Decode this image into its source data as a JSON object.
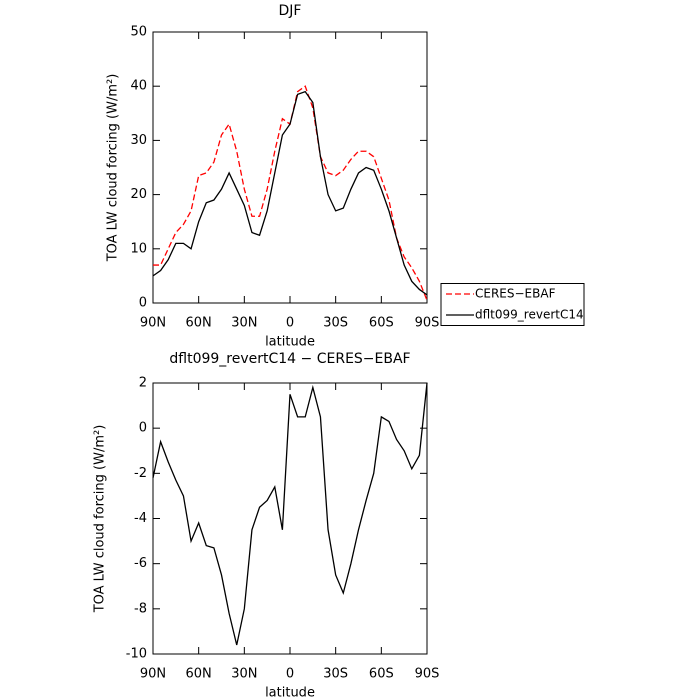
{
  "chart_data": [
    {
      "type": "line",
      "title": "DJF",
      "xlabel": "latitude",
      "ylabel": "TOA LW cloud forcing (W/m²)",
      "x": [
        90,
        85,
        80,
        75,
        70,
        65,
        60,
        55,
        50,
        45,
        40,
        35,
        30,
        25,
        20,
        15,
        10,
        5,
        0,
        -5,
        -10,
        -15,
        -20,
        -25,
        -30,
        -35,
        -40,
        -45,
        -50,
        -55,
        -60,
        -65,
        -70,
        -75,
        -80,
        -85,
        -90
      ],
      "series": [
        {
          "name": "CERES−EBAF",
          "color": "#ff0000",
          "line_style": "dashed",
          "values": [
            7,
            7,
            10,
            13,
            14.5,
            17,
            23.5,
            24,
            26,
            31,
            33,
            28,
            21,
            16,
            16,
            21,
            28,
            34,
            33,
            39,
            40,
            36,
            27,
            24,
            23.5,
            24.5,
            26.5,
            28,
            28,
            27,
            23,
            19,
            12,
            8.5,
            6.5,
            4,
            0.5
          ]
        },
        {
          "name": "dflt099_revertC14",
          "color": "#000000",
          "line_style": "solid",
          "values": [
            5,
            6,
            8,
            11,
            11,
            10,
            15,
            18.5,
            19,
            21,
            24,
            21,
            18,
            13,
            12.5,
            17,
            24,
            31,
            33,
            38.5,
            39,
            37,
            27,
            20,
            17,
            17.5,
            21,
            24,
            25,
            24.5,
            21,
            17,
            12,
            7,
            4,
            2.5,
            1.5
          ]
        }
      ],
      "xlim": [
        90,
        -90
      ],
      "xticks": [
        {
          "value": 90,
          "label": "90N"
        },
        {
          "value": 60,
          "label": "60N"
        },
        {
          "value": 30,
          "label": "30N"
        },
        0,
        {
          "value": -30,
          "label": "30S"
        },
        {
          "value": -60,
          "label": "60S"
        },
        {
          "value": -90,
          "label": "90S"
        }
      ],
      "ylim": [
        0,
        50
      ],
      "yticks": [
        0,
        10,
        20,
        30,
        40,
        50
      ],
      "legend": "right"
    },
    {
      "type": "line",
      "title": "dflt099_revertC14 − CERES−EBAF",
      "xlabel": "latitude",
      "ylabel": "TOA LW cloud forcing (W/m²)",
      "x": [
        90,
        85,
        80,
        75,
        70,
        65,
        60,
        55,
        50,
        45,
        40,
        35,
        30,
        25,
        20,
        15,
        10,
        5,
        0,
        -5,
        -10,
        -15,
        -20,
        -25,
        -30,
        -35,
        -40,
        -45,
        -50,
        -55,
        -60,
        -65,
        -70,
        -75,
        -80,
        -85,
        -90
      ],
      "series": [
        {
          "color": "#000000",
          "line_style": "solid",
          "values": [
            -2.2,
            -0.6,
            -1.5,
            -2.3,
            -3,
            -5,
            -4.2,
            -5.2,
            -5.3,
            -6.5,
            -8.2,
            -9.6,
            -8,
            -4.5,
            -3.5,
            -3.2,
            -2.6,
            -4.5,
            1.5,
            0.5,
            0.5,
            1.8,
            0.5,
            -4.5,
            -6.5,
            -7.3,
            -6,
            -4.5,
            -3.2,
            -2,
            0.5,
            0.3,
            -0.5,
            -1,
            -1.8,
            -1.2,
            2
          ]
        }
      ],
      "xlim": [
        90,
        -90
      ],
      "xticks": [
        {
          "value": 90,
          "label": "90N"
        },
        {
          "value": 60,
          "label": "60N"
        },
        {
          "value": 30,
          "label": "30N"
        },
        0,
        {
          "value": -30,
          "label": "30S"
        },
        {
          "value": -60,
          "label": "60S"
        },
        {
          "value": -90,
          "label": "90S"
        }
      ],
      "ylim": [
        -10,
        2
      ],
      "yticks": [
        -10,
        -8,
        -6,
        -4,
        -2,
        0,
        2
      ]
    }
  ]
}
